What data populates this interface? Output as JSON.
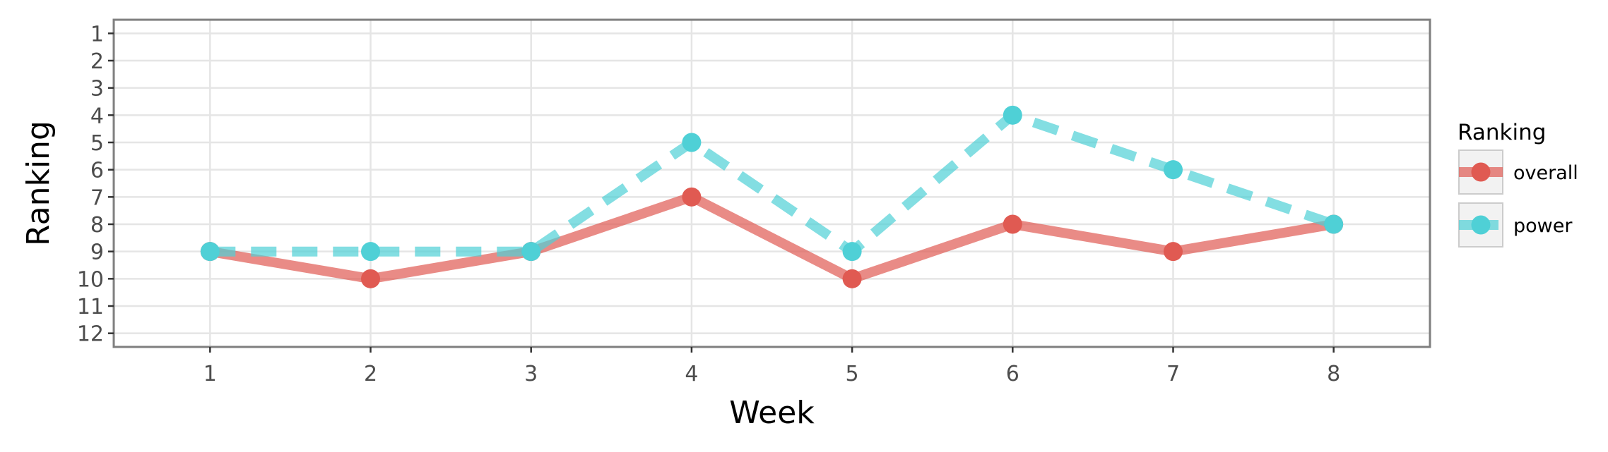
{
  "chart_data": {
    "type": "line",
    "xlabel": "Week",
    "ylabel": "Ranking",
    "x": [
      1,
      2,
      3,
      4,
      5,
      6,
      7,
      8
    ],
    "xlim": [
      0.4,
      8.6
    ],
    "ylim": [
      12.5,
      0.5
    ],
    "y_reversed": true,
    "x_ticks": [
      1,
      2,
      3,
      4,
      5,
      6,
      7,
      8
    ],
    "y_ticks": [
      1,
      2,
      3,
      4,
      5,
      6,
      7,
      8,
      9,
      10,
      11,
      12
    ],
    "grid": true,
    "legend": {
      "title": "Ranking",
      "position": "right"
    },
    "series": [
      {
        "name": "overall",
        "values": [
          9,
          10,
          9,
          7,
          10,
          8,
          9,
          8
        ],
        "color": "#e05a52",
        "line_style": "solid"
      },
      {
        "name": "power",
        "values": [
          9,
          9,
          9,
          5,
          9,
          4,
          6,
          8
        ],
        "color": "#4fd0d6",
        "line_style": "dashed"
      }
    ]
  }
}
